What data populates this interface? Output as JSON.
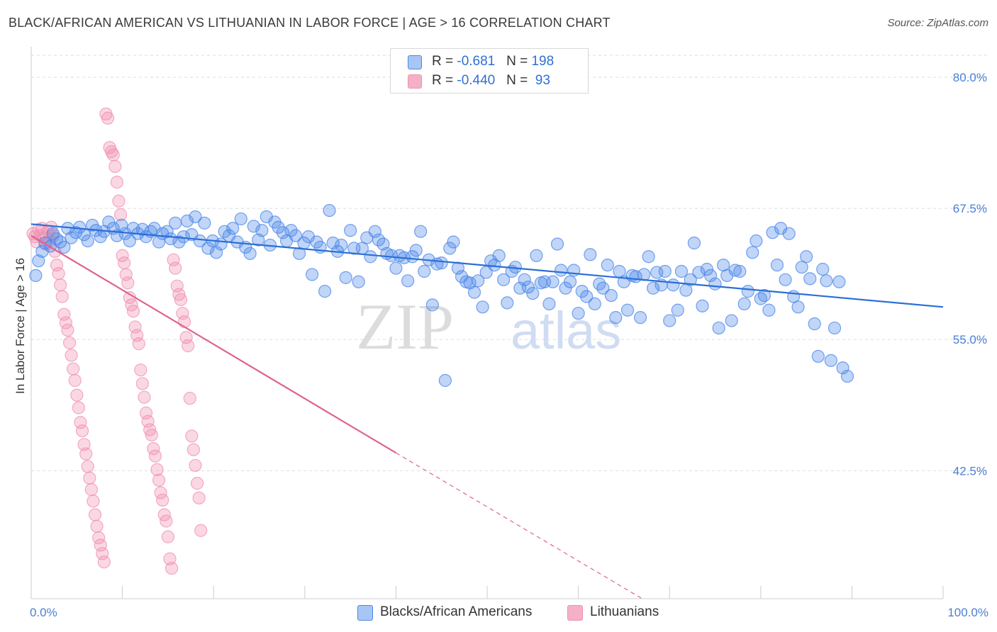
{
  "header": {
    "title": "BLACK/AFRICAN AMERICAN VS LITHUANIAN IN LABOR FORCE | AGE > 16 CORRELATION CHART",
    "source": "Source: ZipAtlas.com"
  },
  "legend": {
    "rows": [
      {
        "r_label": "R = ",
        "r_value": "-0.681",
        "n_label": "N = ",
        "n_value": "198",
        "color": "#a8c6f5"
      },
      {
        "r_label": "R = ",
        "r_value": "-0.440",
        "n_label": "N = ",
        "n_value": " 93",
        "color": "#f5b0c8"
      }
    ]
  },
  "bottom_legend": [
    {
      "label": "Blacks/African Americans",
      "color": "#a8c6f5"
    },
    {
      "label": "Lithuanians",
      "color": "#f5b0c8"
    }
  ],
  "watermark": {
    "part1": "ZIP",
    "part2": "atlas"
  },
  "chart_data": {
    "type": "scatter",
    "title": "BLACK/AFRICAN AMERICAN VS LITHUANIAN IN LABOR FORCE | AGE > 16 CORRELATION CHART",
    "ylabel": "In Labor Force | Age > 16",
    "xlabel": "",
    "xlim": [
      0,
      100
    ],
    "ylim": [
      30.3,
      82.5
    ],
    "x_tick_labels": [
      "0.0%",
      "100.0%"
    ],
    "y_ticks": [
      42.5,
      55.0,
      67.5,
      80.0
    ],
    "y_tick_labels": [
      "42.5%",
      "55.0%",
      "67.5%",
      "80.0%"
    ],
    "grid": true,
    "legend_position": "top-center",
    "colors": {
      "blue": "#4a86e8",
      "blue_line": "#2a6fd6",
      "pink": "#f08fb0",
      "pink_line": "#e0628f"
    },
    "series": [
      {
        "name": "Blacks/African Americans",
        "r": -0.681,
        "n": 198,
        "trend": {
          "x": [
            0,
            100
          ],
          "y": [
            66.0,
            58.1
          ]
        },
        "points": [
          [
            0.5,
            61.1
          ],
          [
            0.8,
            62.5
          ],
          [
            1.2,
            63.4
          ],
          [
            1.5,
            64.2
          ],
          [
            2.1,
            63.9
          ],
          [
            2.4,
            65.1
          ],
          [
            2.8,
            64.6
          ],
          [
            3.2,
            64.3
          ],
          [
            3.6,
            63.8
          ],
          [
            4.0,
            65.6
          ],
          [
            4.4,
            64.7
          ],
          [
            4.9,
            65.2
          ],
          [
            5.3,
            65.7
          ],
          [
            5.8,
            65.0
          ],
          [
            6.2,
            64.4
          ],
          [
            6.7,
            65.9
          ],
          [
            7.1,
            65.4
          ],
          [
            7.6,
            64.8
          ],
          [
            8.0,
            65.3
          ],
          [
            8.5,
            66.2
          ],
          [
            9.0,
            65.6
          ],
          [
            9.4,
            64.9
          ],
          [
            9.9,
            65.9
          ],
          [
            10.3,
            65.1
          ],
          [
            10.8,
            64.4
          ],
          [
            11.2,
            65.6
          ],
          [
            11.7,
            65.1
          ],
          [
            12.2,
            65.5
          ],
          [
            12.6,
            64.8
          ],
          [
            13.1,
            65.3
          ],
          [
            13.5,
            65.6
          ],
          [
            14.0,
            64.3
          ],
          [
            14.4,
            65.1
          ],
          [
            14.9,
            65.3
          ],
          [
            15.3,
            64.6
          ],
          [
            15.8,
            66.1
          ],
          [
            16.2,
            64.3
          ],
          [
            16.7,
            64.8
          ],
          [
            17.1,
            66.3
          ],
          [
            17.6,
            65.0
          ],
          [
            18.0,
            66.7
          ],
          [
            18.5,
            64.4
          ],
          [
            19.0,
            66.1
          ],
          [
            19.4,
            63.7
          ],
          [
            19.9,
            64.4
          ],
          [
            20.3,
            63.3
          ],
          [
            20.8,
            64.1
          ],
          [
            21.2,
            65.3
          ],
          [
            21.7,
            64.9
          ],
          [
            22.1,
            65.6
          ],
          [
            22.6,
            64.3
          ],
          [
            23.0,
            66.5
          ],
          [
            23.5,
            63.8
          ],
          [
            24.0,
            63.2
          ],
          [
            24.4,
            65.8
          ],
          [
            24.9,
            64.5
          ],
          [
            25.3,
            65.4
          ],
          [
            25.8,
            66.7
          ],
          [
            26.2,
            64.0
          ],
          [
            26.7,
            66.2
          ],
          [
            27.1,
            65.7
          ],
          [
            27.6,
            65.2
          ],
          [
            28.0,
            64.4
          ],
          [
            28.5,
            65.4
          ],
          [
            29.0,
            64.9
          ],
          [
            29.4,
            63.2
          ],
          [
            29.9,
            64.2
          ],
          [
            30.4,
            64.8
          ],
          [
            30.8,
            61.2
          ],
          [
            31.3,
            64.3
          ],
          [
            31.7,
            63.8
          ],
          [
            32.2,
            59.6
          ],
          [
            32.7,
            67.3
          ],
          [
            33.1,
            64.2
          ],
          [
            33.6,
            63.4
          ],
          [
            34.0,
            64.0
          ],
          [
            34.5,
            60.9
          ],
          [
            35.0,
            65.4
          ],
          [
            35.4,
            63.7
          ],
          [
            35.9,
            60.5
          ],
          [
            36.3,
            63.7
          ],
          [
            36.8,
            64.7
          ],
          [
            37.2,
            62.9
          ],
          [
            37.7,
            65.3
          ],
          [
            38.1,
            64.5
          ],
          [
            38.6,
            64.1
          ],
          [
            39.0,
            63.2
          ],
          [
            39.5,
            63.0
          ],
          [
            40.0,
            61.8
          ],
          [
            40.4,
            63.0
          ],
          [
            40.9,
            62.8
          ],
          [
            41.3,
            60.6
          ],
          [
            41.8,
            62.9
          ],
          [
            42.2,
            63.5
          ],
          [
            42.7,
            65.3
          ],
          [
            43.1,
            61.5
          ],
          [
            43.6,
            62.6
          ],
          [
            44.0,
            58.3
          ],
          [
            44.5,
            62.2
          ],
          [
            45.0,
            62.3
          ],
          [
            45.4,
            51.1
          ],
          [
            45.9,
            63.7
          ],
          [
            46.3,
            64.3
          ],
          [
            46.8,
            61.8
          ],
          [
            47.2,
            61.0
          ],
          [
            47.7,
            60.5
          ],
          [
            48.1,
            60.4
          ],
          [
            48.6,
            59.5
          ],
          [
            49.0,
            60.6
          ],
          [
            49.5,
            58.1
          ],
          [
            49.9,
            61.4
          ],
          [
            50.4,
            62.5
          ],
          [
            50.8,
            62.1
          ],
          [
            51.3,
            63.0
          ],
          [
            51.8,
            60.7
          ],
          [
            52.2,
            58.5
          ],
          [
            52.7,
            61.5
          ],
          [
            53.1,
            61.9
          ],
          [
            53.6,
            59.9
          ],
          [
            54.1,
            60.7
          ],
          [
            54.5,
            60.0
          ],
          [
            55.0,
            59.4
          ],
          [
            55.4,
            63.0
          ],
          [
            55.9,
            60.4
          ],
          [
            56.3,
            60.5
          ],
          [
            56.8,
            58.4
          ],
          [
            57.2,
            60.5
          ],
          [
            57.7,
            64.1
          ],
          [
            58.1,
            61.6
          ],
          [
            58.6,
            59.9
          ],
          [
            59.1,
            60.5
          ],
          [
            59.5,
            61.6
          ],
          [
            60.0,
            57.5
          ],
          [
            60.4,
            59.6
          ],
          [
            60.9,
            59.1
          ],
          [
            61.3,
            63.1
          ],
          [
            61.8,
            58.4
          ],
          [
            62.3,
            60.3
          ],
          [
            62.7,
            59.9
          ],
          [
            63.2,
            62.1
          ],
          [
            63.6,
            59.2
          ],
          [
            64.1,
            57.1
          ],
          [
            64.5,
            61.5
          ],
          [
            65.0,
            60.5
          ],
          [
            65.4,
            57.8
          ],
          [
            65.9,
            61.1
          ],
          [
            66.3,
            61.0
          ],
          [
            66.8,
            57.1
          ],
          [
            67.2,
            61.2
          ],
          [
            67.7,
            62.9
          ],
          [
            68.2,
            59.9
          ],
          [
            68.6,
            61.4
          ],
          [
            69.1,
            60.2
          ],
          [
            69.5,
            61.5
          ],
          [
            70.0,
            56.8
          ],
          [
            70.4,
            60.2
          ],
          [
            70.9,
            57.8
          ],
          [
            71.3,
            61.5
          ],
          [
            71.8,
            59.7
          ],
          [
            72.3,
            60.7
          ],
          [
            72.7,
            64.2
          ],
          [
            73.2,
            61.4
          ],
          [
            73.6,
            58.2
          ],
          [
            74.1,
            61.7
          ],
          [
            74.5,
            61.1
          ],
          [
            75.0,
            60.3
          ],
          [
            75.4,
            56.1
          ],
          [
            75.9,
            62.1
          ],
          [
            76.3,
            61.1
          ],
          [
            76.8,
            56.8
          ],
          [
            77.2,
            61.6
          ],
          [
            77.7,
            61.5
          ],
          [
            78.2,
            58.4
          ],
          [
            78.6,
            59.6
          ],
          [
            79.1,
            63.3
          ],
          [
            79.5,
            64.4
          ],
          [
            80.0,
            58.9
          ],
          [
            80.4,
            59.2
          ],
          [
            80.9,
            57.8
          ],
          [
            81.3,
            65.2
          ],
          [
            81.8,
            62.1
          ],
          [
            82.2,
            65.6
          ],
          [
            82.7,
            60.7
          ],
          [
            83.1,
            65.1
          ],
          [
            83.6,
            59.1
          ],
          [
            84.1,
            58.1
          ],
          [
            84.5,
            61.9
          ],
          [
            85.0,
            62.9
          ],
          [
            85.4,
            60.8
          ],
          [
            85.9,
            56.5
          ],
          [
            86.3,
            53.4
          ],
          [
            86.8,
            61.7
          ],
          [
            87.2,
            60.6
          ],
          [
            87.7,
            53.0
          ],
          [
            88.1,
            56.1
          ],
          [
            88.6,
            60.5
          ],
          [
            89.0,
            52.3
          ],
          [
            89.5,
            51.5
          ]
        ]
      },
      {
        "name": "Lithuanians",
        "r": -0.44,
        "n": 93,
        "trend": {
          "x": [
            0,
            40
          ],
          "y": [
            64.9,
            44.2
          ]
        },
        "trend_dashed": {
          "x": [
            40,
            67
          ],
          "y": [
            44.2,
            30.3
          ]
        },
        "points": [
          [
            0.2,
            65.1
          ],
          [
            0.4,
            64.8
          ],
          [
            0.6,
            64.3
          ],
          [
            0.8,
            65.5
          ],
          [
            1.0,
            64.9
          ],
          [
            1.2,
            65.6
          ],
          [
            1.4,
            64.7
          ],
          [
            1.6,
            64.1
          ],
          [
            1.8,
            65.3
          ],
          [
            2.0,
            64.5
          ],
          [
            2.2,
            65.7
          ],
          [
            2.4,
            64.9
          ],
          [
            2.6,
            63.4
          ],
          [
            2.8,
            62.1
          ],
          [
            3.0,
            61.3
          ],
          [
            3.2,
            60.2
          ],
          [
            3.4,
            59.1
          ],
          [
            3.6,
            57.4
          ],
          [
            3.8,
            56.6
          ],
          [
            4.0,
            55.9
          ],
          [
            4.2,
            54.7
          ],
          [
            4.4,
            53.5
          ],
          [
            4.6,
            52.2
          ],
          [
            4.8,
            51.1
          ],
          [
            5.0,
            49.7
          ],
          [
            5.2,
            48.5
          ],
          [
            5.4,
            47.1
          ],
          [
            5.6,
            46.3
          ],
          [
            5.8,
            45.0
          ],
          [
            6.0,
            44.1
          ],
          [
            6.2,
            42.9
          ],
          [
            6.4,
            41.8
          ],
          [
            6.6,
            40.7
          ],
          [
            6.8,
            39.6
          ],
          [
            7.0,
            38.3
          ],
          [
            7.2,
            37.2
          ],
          [
            7.4,
            36.1
          ],
          [
            7.6,
            35.4
          ],
          [
            7.8,
            34.6
          ],
          [
            8.0,
            33.8
          ],
          [
            8.2,
            76.5
          ],
          [
            8.4,
            76.1
          ],
          [
            8.6,
            73.3
          ],
          [
            8.8,
            72.9
          ],
          [
            9.0,
            72.6
          ],
          [
            9.2,
            71.5
          ],
          [
            9.4,
            70.0
          ],
          [
            9.6,
            68.2
          ],
          [
            9.8,
            66.9
          ],
          [
            10.0,
            63.0
          ],
          [
            10.2,
            62.3
          ],
          [
            10.4,
            61.2
          ],
          [
            10.6,
            60.4
          ],
          [
            10.8,
            59.0
          ],
          [
            11.0,
            58.3
          ],
          [
            11.2,
            57.7
          ],
          [
            11.4,
            56.2
          ],
          [
            11.6,
            55.4
          ],
          [
            11.8,
            54.6
          ],
          [
            12.0,
            52.1
          ],
          [
            12.2,
            50.8
          ],
          [
            12.4,
            49.5
          ],
          [
            12.6,
            48.0
          ],
          [
            12.8,
            47.2
          ],
          [
            13.0,
            46.4
          ],
          [
            13.2,
            45.9
          ],
          [
            13.4,
            44.6
          ],
          [
            13.6,
            43.9
          ],
          [
            13.8,
            42.6
          ],
          [
            14.0,
            41.6
          ],
          [
            14.2,
            40.4
          ],
          [
            14.4,
            39.7
          ],
          [
            14.6,
            38.3
          ],
          [
            14.8,
            37.7
          ],
          [
            15.0,
            36.2
          ],
          [
            15.2,
            34.1
          ],
          [
            15.4,
            33.2
          ],
          [
            15.6,
            62.6
          ],
          [
            15.8,
            61.8
          ],
          [
            16.0,
            60.1
          ],
          [
            16.2,
            59.3
          ],
          [
            16.4,
            58.8
          ],
          [
            16.6,
            57.5
          ],
          [
            16.8,
            56.7
          ],
          [
            17.0,
            55.2
          ],
          [
            17.2,
            54.4
          ],
          [
            17.4,
            49.4
          ],
          [
            17.6,
            45.8
          ],
          [
            17.8,
            44.5
          ],
          [
            18.0,
            43.0
          ],
          [
            18.2,
            41.3
          ],
          [
            18.4,
            39.9
          ],
          [
            18.6,
            36.8
          ]
        ]
      }
    ]
  }
}
